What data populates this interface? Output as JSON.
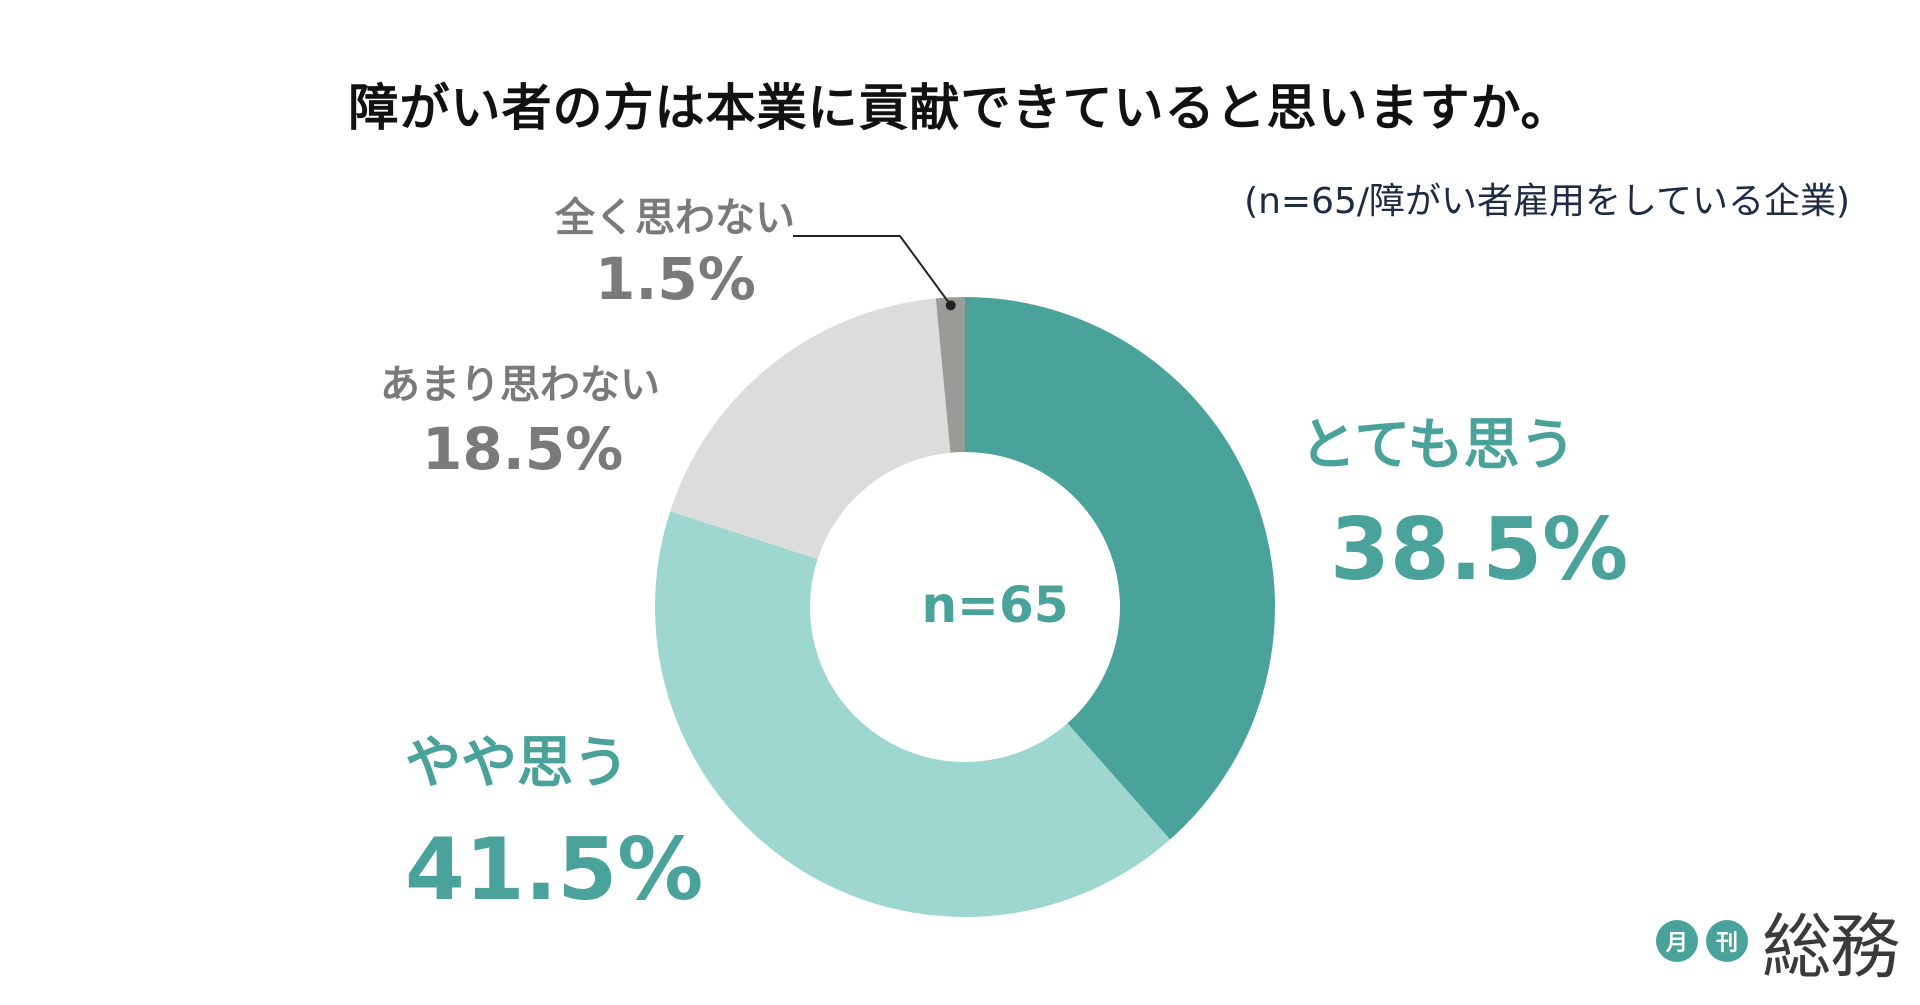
{
  "title": "障がい者の方は本業に貢献できていると思いますか。",
  "subtitle": "(n=65/障がい者雇用をしている企業)",
  "center_text": "n=65",
  "colors": {
    "very": "#4aa39a",
    "somewhat": "#9dd7cf",
    "not_much": "#dcdcdc",
    "not_at_all": "#9a9a96",
    "accent_text": "#4aa39a",
    "gray_text": "#7a7a7a"
  },
  "chart_data": {
    "type": "pie",
    "title": "障がい者の方は本業に貢献できていると思いますか。",
    "subtitle": "(n=65/障がい者雇用をしている企業)",
    "center_label": "n=65",
    "slices": [
      {
        "label": "とても思う",
        "value": 38.5,
        "display": "38.5%",
        "color": "#4aa39a"
      },
      {
        "label": "やや思う",
        "value": 41.5,
        "display": "41.5%",
        "color": "#9dd7cf"
      },
      {
        "label": "あまり思わない",
        "value": 18.5,
        "display": "18.5%",
        "color": "#dcdcdc"
      },
      {
        "label": "全く思わない",
        "value": 1.5,
        "display": "1.5%",
        "color": "#9a9a96"
      }
    ],
    "start_angle_deg": 0,
    "direction": "clockwise",
    "donut": true
  },
  "logo": {
    "small1": "月",
    "small2": "刊",
    "main": "総務",
    "circle_color": "#4aa39a"
  }
}
